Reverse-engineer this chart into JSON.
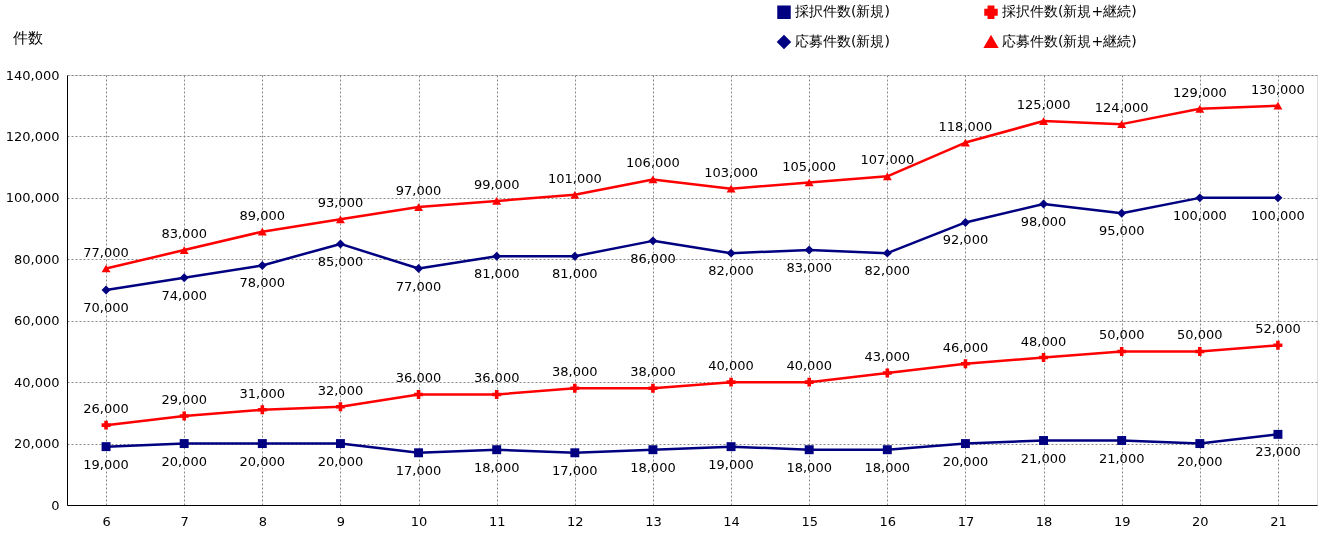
{
  "chart_data": {
    "type": "line",
    "ylabel": "件数",
    "categories": [
      "6",
      "7",
      "8",
      "9",
      "10",
      "11",
      "12",
      "13",
      "14",
      "15",
      "16",
      "17",
      "18",
      "19",
      "20",
      "21"
    ],
    "series": [
      {
        "name": "採択件数(新規)",
        "color": "#000080",
        "marker": "square",
        "values": [
          19000,
          20000,
          20000,
          20000,
          17000,
          18000,
          17000,
          18000,
          19000,
          18000,
          18000,
          20000,
          21000,
          21000,
          20000,
          23000
        ],
        "value_labels": [
          "19,000",
          "20,000",
          "20,000",
          "20,000",
          "17,000",
          "18,000",
          "17,000",
          "18,000",
          "19,000",
          "18,000",
          "18,000",
          "20,000",
          "21,000",
          "21,000",
          "20,000",
          "23,000"
        ]
      },
      {
        "name": "採択件数(新規+継続)",
        "color": "#ff0000",
        "marker": "cross",
        "values": [
          26000,
          29000,
          31000,
          32000,
          36000,
          36000,
          38000,
          38000,
          40000,
          40000,
          43000,
          46000,
          48000,
          50000,
          50000,
          52000
        ],
        "value_labels": [
          "26,000",
          "29,000",
          "31,000",
          "32,000",
          "36,000",
          "36,000",
          "38,000",
          "38,000",
          "40,000",
          "40,000",
          "43,000",
          "46,000",
          "48,000",
          "50,000",
          "50,000",
          "52,000"
        ]
      },
      {
        "name": "応募件数(新規)",
        "color": "#000080",
        "marker": "diamond",
        "values": [
          70000,
          74000,
          78000,
          85000,
          77000,
          81000,
          81000,
          86000,
          82000,
          83000,
          82000,
          92000,
          98000,
          95000,
          100000,
          100000
        ],
        "value_labels": [
          "70,000",
          "74,000",
          "78,000",
          "85,000",
          "77,000",
          "81,000",
          "81,000",
          "86,000",
          "82,000",
          "83,000",
          "82,000",
          "92,000",
          "98,000",
          "95,000",
          "100,000",
          "100,000"
        ]
      },
      {
        "name": "応募件数(新規+継続)",
        "color": "#ff0000",
        "marker": "triangle",
        "values": [
          77000,
          83000,
          89000,
          93000,
          97000,
          99000,
          101000,
          106000,
          103000,
          105000,
          107000,
          118000,
          125000,
          124000,
          129000,
          130000
        ],
        "value_labels": [
          "77,000",
          "83,000",
          "89,000",
          "93,000",
          "97,000",
          "99,000",
          "101,000",
          "106,000",
          "103,000",
          "105,000",
          "107,000",
          "118,000",
          "125,000",
          "124,000",
          "129,000",
          "130,000"
        ]
      }
    ],
    "ylim": [
      0,
      140000
    ],
    "yticks": [
      0,
      {
        "value": 20000,
        "label": "20,000"
      },
      {
        "value": 40000,
        "label": "40,000"
      },
      {
        "value": 60000,
        "label": "60,000"
      },
      {
        "value": 80000,
        "label": "80,000"
      },
      {
        "value": 100000,
        "label": "100,000"
      },
      {
        "value": 120000,
        "label": "120,000"
      },
      {
        "value": 140000,
        "label": "140,000"
      }
    ],
    "grid": true,
    "legend": "top right",
    "line_style": "solid",
    "data_labels": true
  }
}
